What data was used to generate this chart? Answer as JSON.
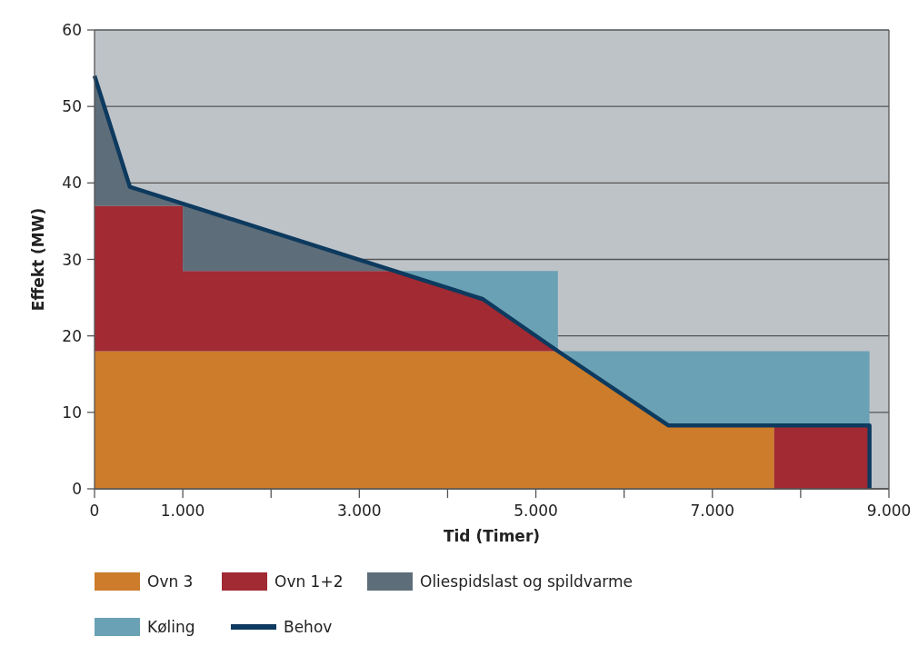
{
  "chart_data": {
    "type": "area",
    "stacked": true,
    "xlabel": "Tid (Timer)",
    "ylabel": "Effekt (MW)",
    "xlim": [
      0,
      9000
    ],
    "ylim": [
      0,
      60
    ],
    "xticks": [
      0,
      {
        "value": 1000,
        "label": "1.000"
      },
      {
        "value": 2000,
        "label": null
      },
      {
        "value": 3000,
        "label": "3.000"
      },
      {
        "value": 4000,
        "label": null
      },
      {
        "value": 5000,
        "label": "5.000"
      },
      {
        "value": 6000,
        "label": null
      },
      {
        "value": 7000,
        "label": "7.000"
      },
      {
        "value": 8000,
        "label": null
      },
      {
        "value": 9000,
        "label": "9.000"
      }
    ],
    "yticks": [
      0,
      10,
      20,
      30,
      40,
      50,
      60
    ],
    "grid": "y",
    "legend": "bottom",
    "x": [
      0,
      400,
      1000,
      1000,
      3400,
      4400,
      5250,
      5250,
      6500,
      7700,
      7700,
      8780
    ],
    "series": [
      {
        "name": "Ovn 3",
        "color": "#cc7c2a",
        "values": [
          18,
          18,
          18,
          18,
          18,
          18,
          18,
          18,
          8.3,
          8.3,
          null,
          null
        ]
      },
      {
        "name": "Ovn 1+2",
        "color": "#a12a33",
        "values": [
          19,
          19,
          19,
          10.5,
          10.5,
          6.8,
          0,
          null,
          null,
          null,
          8.3,
          8.3
        ]
      },
      {
        "name": "Oliespidslast og spildvarme",
        "color": "#5d6d79",
        "values": [
          17,
          2.5,
          0.3,
          8.8,
          0,
          null,
          null,
          null,
          null,
          null,
          null,
          null
        ]
      },
      {
        "name": "Køling",
        "color": "#6aa1b4",
        "values": [
          null,
          null,
          null,
          null,
          0,
          3.7,
          10.5,
          0,
          9.7,
          9.7,
          9.7,
          9.7
        ]
      },
      {
        "name": "Behov",
        "type": "line",
        "color": "#0d3a5e",
        "x": [
          0,
          400,
          4400,
          5250,
          6500,
          8780,
          8780
        ],
        "values": [
          54,
          39.5,
          24.8,
          18,
          8.3,
          8.3,
          0
        ]
      }
    ]
  }
}
